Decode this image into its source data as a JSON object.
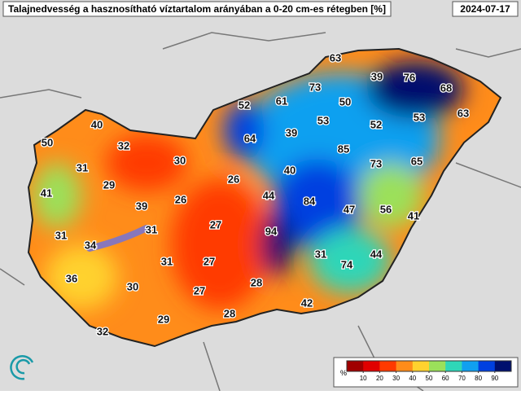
{
  "header": {
    "title": "Talajnedvesség a hasznosítható víztartalom arányában a 0-20 cm-es rétegben [%]",
    "date": "2024-07-17"
  },
  "labels": [
    "63",
    "39",
    "76",
    "68",
    "73",
    "50",
    "52",
    "61",
    "53",
    "52",
    "53",
    "63",
    "40",
    "50",
    "32",
    "64",
    "39",
    "85",
    "30",
    "31",
    "73",
    "65",
    "29",
    "26",
    "40",
    "41",
    "44",
    "84",
    "26",
    "39",
    "47",
    "56",
    "41",
    "27",
    "31",
    "94",
    "31",
    "34",
    "31",
    "44",
    "31",
    "27",
    "74",
    "36",
    "30",
    "28",
    "27",
    "42",
    "28",
    "29",
    "32"
  ],
  "colorbar": {
    "unit": "%",
    "ticks": [
      10,
      20,
      30,
      40,
      50,
      60,
      70,
      80,
      90
    ],
    "lim": [
      0,
      100
    ],
    "colors": [
      "#a00000",
      "#e00000",
      "#ff3a00",
      "#ff8c1a",
      "#ffd22e",
      "#9be05a",
      "#2fd6b8",
      "#10a0f0",
      "#0040e0",
      "#00106e"
    ]
  }
}
